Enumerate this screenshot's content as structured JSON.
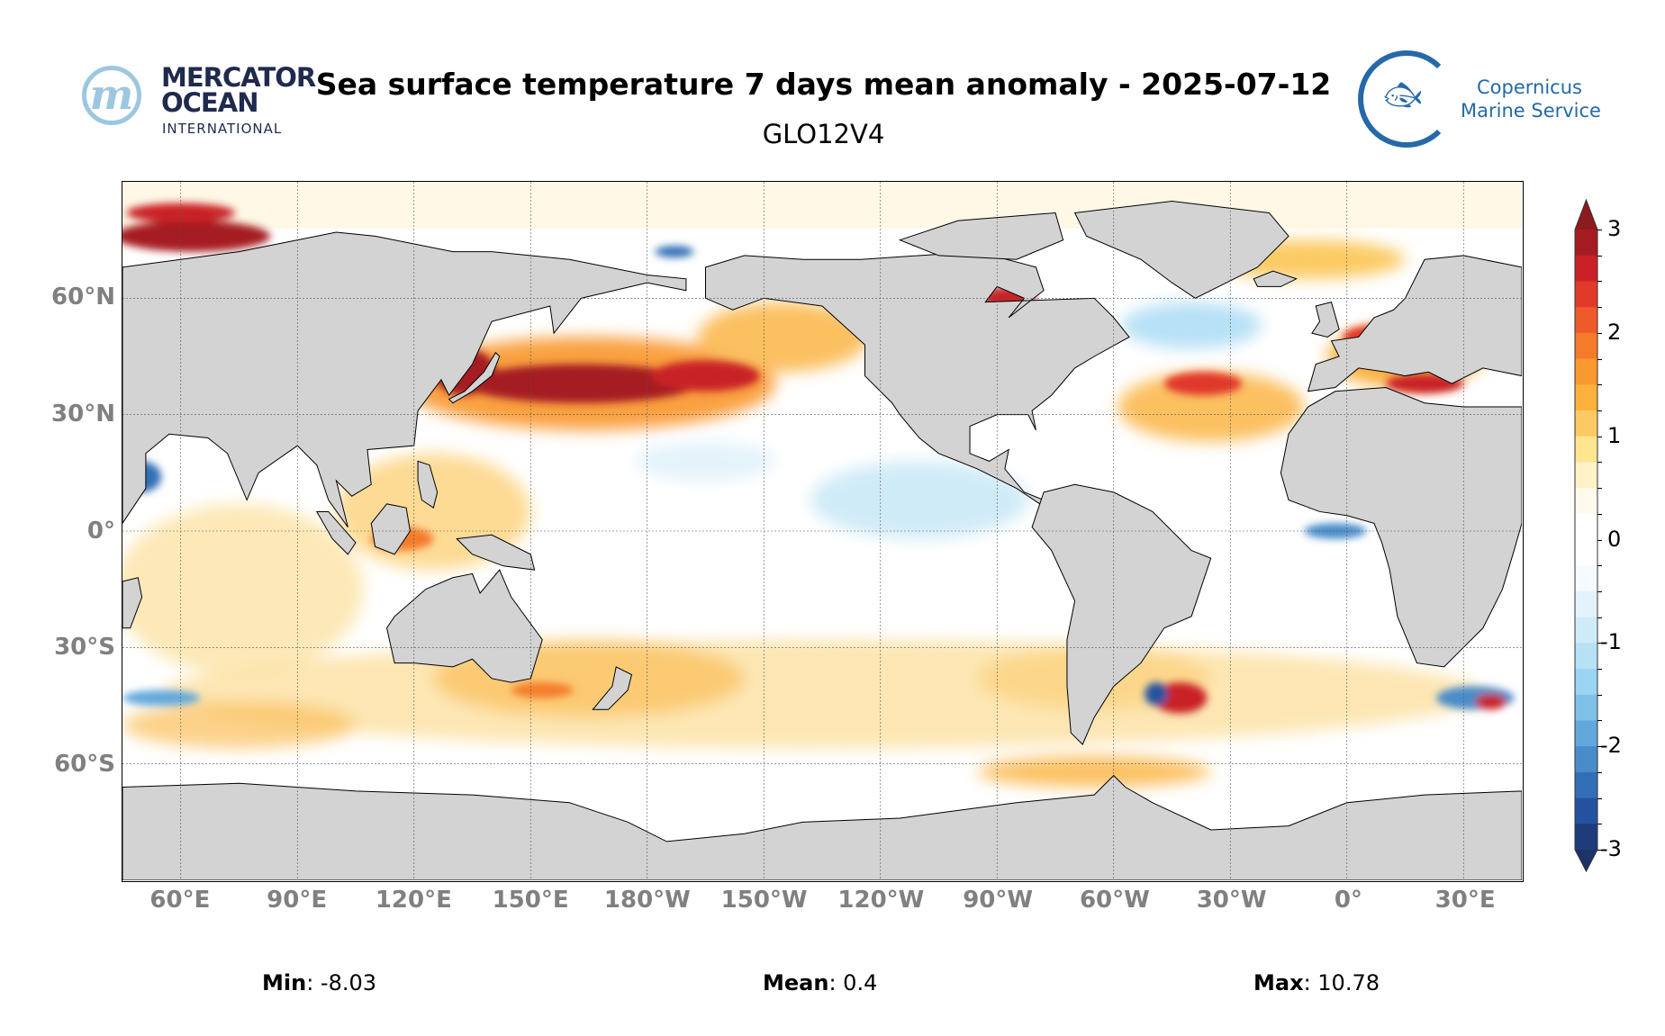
{
  "header": {
    "title": "Sea surface temperature 7 days mean anomaly - 2025-07-12",
    "subtitle": "GLO12V4"
  },
  "logos": {
    "mercator": {
      "line1": "MERCATOR",
      "line2": "OCEAN",
      "line3": "INTERNATIONAL",
      "mark": "m"
    },
    "copernicus": {
      "line1": "Copernicus",
      "line2": "Marine Service",
      "icon": "fish-icon"
    }
  },
  "map": {
    "projection": "plate-carree",
    "lon_range": [
      45,
      405
    ],
    "lat_range": [
      -90,
      90
    ],
    "land_color": "#d3d3d3",
    "lat_ticks": [
      {
        "lat": 60,
        "label": "60°N"
      },
      {
        "lat": 30,
        "label": "30°N"
      },
      {
        "lat": 0,
        "label": "0°"
      },
      {
        "lat": -30,
        "label": "30°S"
      },
      {
        "lat": -60,
        "label": "60°S"
      }
    ],
    "lon_ticks": [
      {
        "lon": 60,
        "label": "60°E"
      },
      {
        "lon": 90,
        "label": "90°E"
      },
      {
        "lon": 120,
        "label": "120°E"
      },
      {
        "lon": 150,
        "label": "150°E"
      },
      {
        "lon": 180,
        "label": "180°W"
      },
      {
        "lon": 210,
        "label": "150°W"
      },
      {
        "lon": 240,
        "label": "120°W"
      },
      {
        "lon": 270,
        "label": "90°W"
      },
      {
        "lon": 300,
        "label": "60°W"
      },
      {
        "lon": 330,
        "label": "30°W"
      },
      {
        "lon": 360,
        "label": "0°"
      },
      {
        "lon": 390,
        "label": "30°E"
      }
    ]
  },
  "colorbar": {
    "min": -3,
    "max": 3,
    "step": 0.25,
    "extend": "both",
    "ticks": [
      {
        "value": 3,
        "label": "3"
      },
      {
        "value": 2,
        "label": "2"
      },
      {
        "value": 1,
        "label": "1"
      },
      {
        "value": 0,
        "label": "0"
      },
      {
        "value": -1,
        "label": "-1"
      },
      {
        "value": -2,
        "label": "-2"
      },
      {
        "value": -3,
        "label": "-3"
      }
    ],
    "colors_top_to_bottom": [
      "#a51c22",
      "#c92127",
      "#e0392a",
      "#ee5a2a",
      "#f47b2a",
      "#f9992f",
      "#fbb13c",
      "#fcca63",
      "#fee58f",
      "#fff1c8",
      "#fffaee",
      "#ffffff",
      "#ffffff",
      "#f4fafe",
      "#e4f3fb",
      "#d0ebf8",
      "#b7e1f5",
      "#9bd5f3",
      "#7fc0e8",
      "#62a8dc",
      "#4a8cc9",
      "#336fb6",
      "#24529f",
      "#1f3c7a"
    ],
    "over_color": "#8c1a1f",
    "under_color": "#1c3368"
  },
  "stats": {
    "min_label": "Min",
    "min_value": ": -8.03",
    "mean_label": "Mean",
    "mean_value": ": 0.4",
    "max_label": "Max",
    "max_value": ": 10.78"
  }
}
